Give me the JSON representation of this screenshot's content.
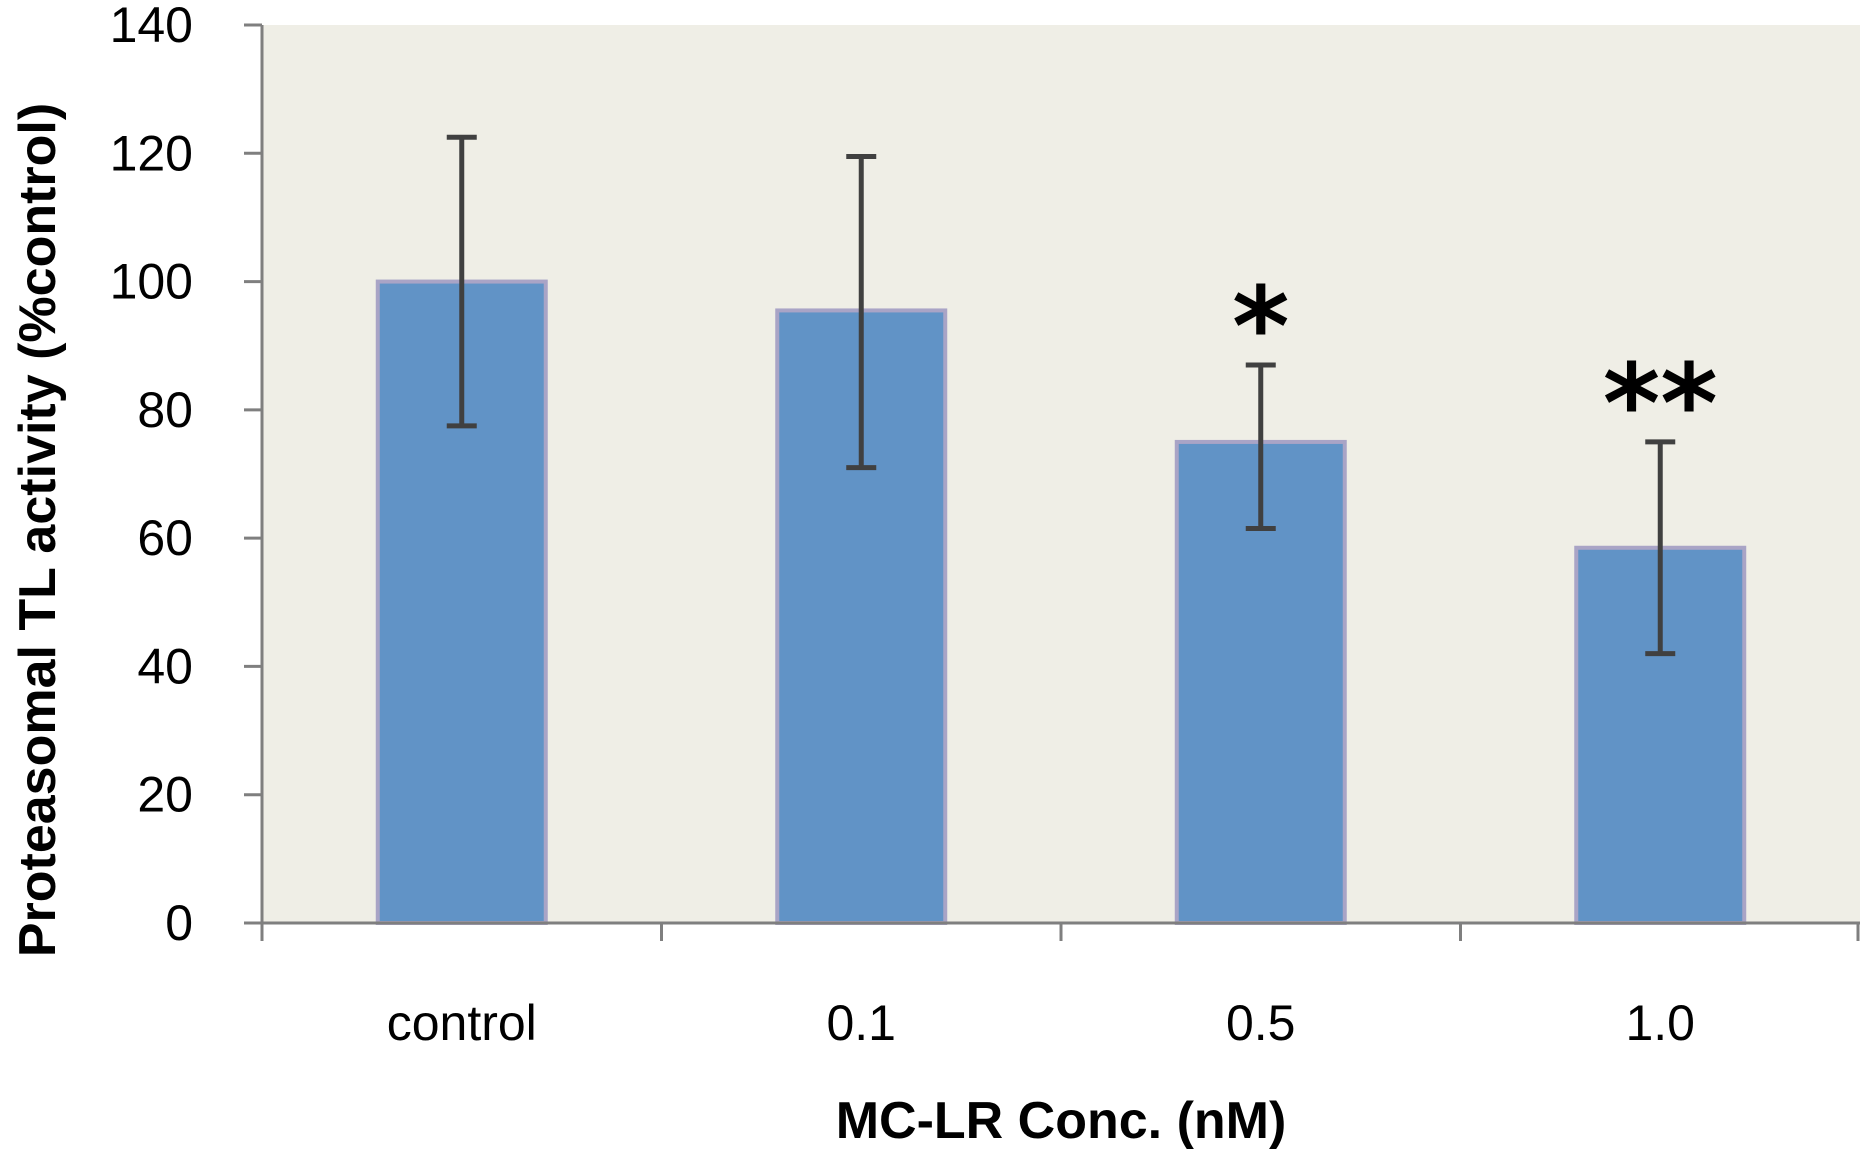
{
  "chart_data": {
    "type": "bar",
    "title": "",
    "xlabel": "MC-LR Conc. (nM)",
    "ylabel": "Proteasomal TL activity (%control)",
    "categories": [
      "control",
      "0.1",
      "0.5",
      "1.0"
    ],
    "values": [
      100,
      95.5,
      75,
      58.5
    ],
    "error_upper": [
      122.5,
      119.5,
      87,
      75
    ],
    "error_lower": [
      77.5,
      71,
      61.5,
      42
    ],
    "significance": [
      "",
      "",
      "*",
      "**"
    ],
    "ylim": [
      0,
      140
    ],
    "yticks": [
      0,
      20,
      40,
      60,
      80,
      100,
      120,
      140
    ],
    "grid": false,
    "legend": "none",
    "colors": {
      "bar": "#6193c6",
      "bar_edge": "#a9a4c6",
      "plot_bg": "#efeee6",
      "axis": "#7f7f7f",
      "error_bar": "#404040"
    }
  }
}
